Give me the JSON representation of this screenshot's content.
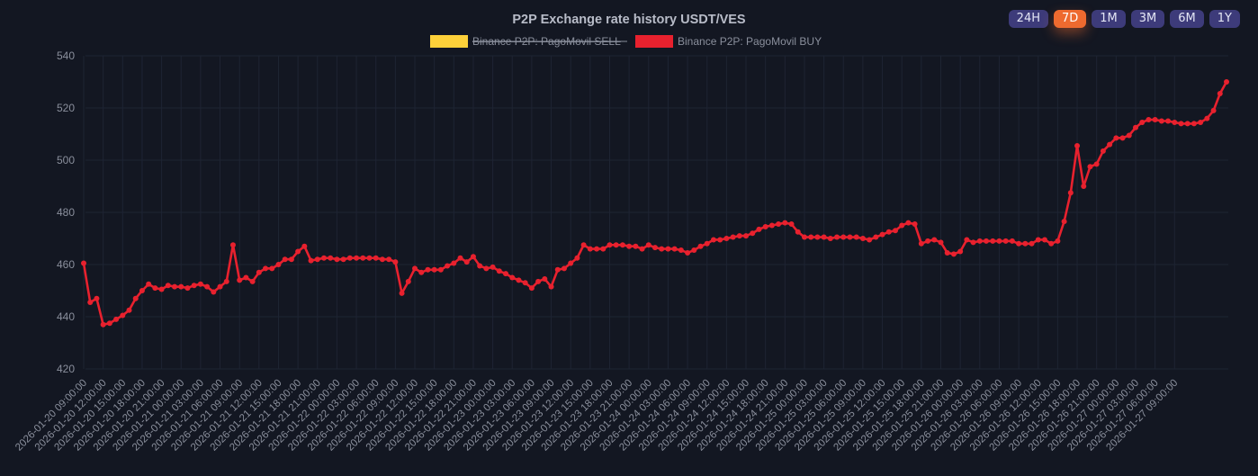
{
  "range_buttons": [
    {
      "label": "24H",
      "active": false
    },
    {
      "label": "7D",
      "active": true
    },
    {
      "label": "1M",
      "active": false
    },
    {
      "label": "3M",
      "active": false
    },
    {
      "label": "6M",
      "active": false
    },
    {
      "label": "1Y",
      "active": false
    }
  ],
  "colors": {
    "background": "#131722",
    "grid": "#1e2433",
    "text": "#8a8f9c",
    "title": "#b8bcc8",
    "buy_line": "#e8212e",
    "sell_legend": "#fdd13a",
    "active_button": "#ee6a2f",
    "button": "#3d3b7a"
  },
  "chart_data": {
    "type": "line",
    "title": "P2P Exchange rate history USDT/VES",
    "xlabel": "",
    "ylabel": "",
    "ylim": [
      420,
      540
    ],
    "yticks": [
      420,
      440,
      460,
      480,
      500,
      520,
      540
    ],
    "grid": true,
    "legend_position": "top-center",
    "legend": [
      {
        "name": "Binance P2P: PagoMovil SELL",
        "color": "#fdd13a",
        "hidden": true
      },
      {
        "name": "Binance P2P: PagoMovil BUY",
        "color": "#e8212e",
        "hidden": false
      }
    ],
    "x_tick_labels": [
      "2026-01-20 09:00:00",
      "2026-01-20 12:00:00",
      "2026-01-20 15:00:00",
      "2026-01-20 18:00:00",
      "2026-01-20 21:00:00",
      "2026-01-21 00:00:00",
      "2026-01-21 03:00:00",
      "2026-01-21 06:00:00",
      "2026-01-21 09:00:00",
      "2026-01-21 12:00:00",
      "2026-01-21 15:00:00",
      "2026-01-21 18:00:00",
      "2026-01-21 21:00:00",
      "2026-01-22 00:00:00",
      "2026-01-22 03:00:00",
      "2026-01-22 06:00:00",
      "2026-01-22 09:00:00",
      "2026-01-22 12:00:00",
      "2026-01-22 15:00:00",
      "2026-01-22 18:00:00",
      "2026-01-22 21:00:00",
      "2026-01-23 00:00:00",
      "2026-01-23 03:00:00",
      "2026-01-23 06:00:00",
      "2026-01-23 09:00:00",
      "2026-01-23 12:00:00",
      "2026-01-23 15:00:00",
      "2026-01-23 18:00:00",
      "2026-01-23 21:00:00",
      "2026-01-24 00:00:00",
      "2026-01-24 03:00:00",
      "2026-01-24 06:00:00",
      "2026-01-24 09:00:00",
      "2026-01-24 12:00:00",
      "2026-01-24 15:00:00",
      "2026-01-24 18:00:00",
      "2026-01-24 21:00:00",
      "2026-01-25 00:00:00",
      "2026-01-25 03:00:00",
      "2026-01-25 06:00:00",
      "2026-01-25 09:00:00",
      "2026-01-25 12:00:00",
      "2026-01-25 15:00:00",
      "2026-01-25 18:00:00",
      "2026-01-25 21:00:00",
      "2026-01-26 00:00:00",
      "2026-01-26 03:00:00",
      "2026-01-26 06:00:00",
      "2026-01-26 09:00:00",
      "2026-01-26 12:00:00",
      "2026-01-26 15:00:00",
      "2026-01-26 18:00:00",
      "2026-01-26 21:00:00",
      "2026-01-27 00:00:00",
      "2026-01-27 03:00:00",
      "2026-01-27 06:00:00",
      "2026-01-27 09:00:00"
    ],
    "series": [
      {
        "name": "Binance P2P: PagoMovil BUY",
        "color": "#e8212e",
        "points_per_3h": 3,
        "values": [
          460.5,
          445.5,
          447,
          437,
          437.5,
          439,
          440.5,
          442.5,
          447,
          450,
          452.5,
          451,
          450.5,
          452,
          451.5,
          451.5,
          451,
          452,
          452.5,
          451.5,
          449.5,
          451.5,
          453.5,
          467.5,
          454,
          455,
          453.5,
          457,
          458.5,
          458.5,
          460,
          462,
          462,
          465,
          467,
          461.5,
          462,
          462.5,
          462.5,
          462,
          462,
          462.5,
          462.5,
          462.5,
          462.5,
          462.5,
          462,
          462,
          461,
          449,
          453.5,
          458.5,
          457,
          458,
          458,
          458,
          459.5,
          460.5,
          462.5,
          461,
          463,
          459.5,
          458.5,
          459,
          457.5,
          456.5,
          455,
          454,
          453,
          451,
          453.5,
          454.5,
          451.5,
          458,
          458.5,
          460.5,
          462.5,
          467.5,
          466,
          466,
          466,
          467.5,
          467.5,
          467.5,
          467,
          467,
          466,
          467.5,
          466.5,
          466,
          466,
          466,
          465.5,
          464.5,
          465.5,
          467,
          468,
          469.5,
          469.5,
          470,
          470.5,
          471,
          471,
          472,
          473.5,
          474.5,
          475,
          475.5,
          476,
          475.5,
          472.5,
          470.5,
          470.5,
          470.5,
          470.5,
          470,
          470.5,
          470.5,
          470.5,
          470.5,
          470,
          469.5,
          470.5,
          471.5,
          472.5,
          473,
          475,
          476,
          475.5,
          468,
          469,
          469.5,
          468.5,
          464.5,
          464,
          465,
          469.5,
          468.5,
          469,
          469,
          469,
          469,
          469,
          469,
          468,
          468,
          468,
          469.5,
          469.5,
          468,
          469,
          476.5,
          487.5,
          505.5,
          490,
          497.5,
          498.5,
          503.5,
          506,
          508.5,
          508.5,
          509.5,
          512.5,
          514.5,
          515.5,
          515.5,
          515,
          515,
          514.5,
          514,
          514,
          514,
          514.5,
          516,
          519,
          525.5,
          530
        ]
      }
    ]
  }
}
